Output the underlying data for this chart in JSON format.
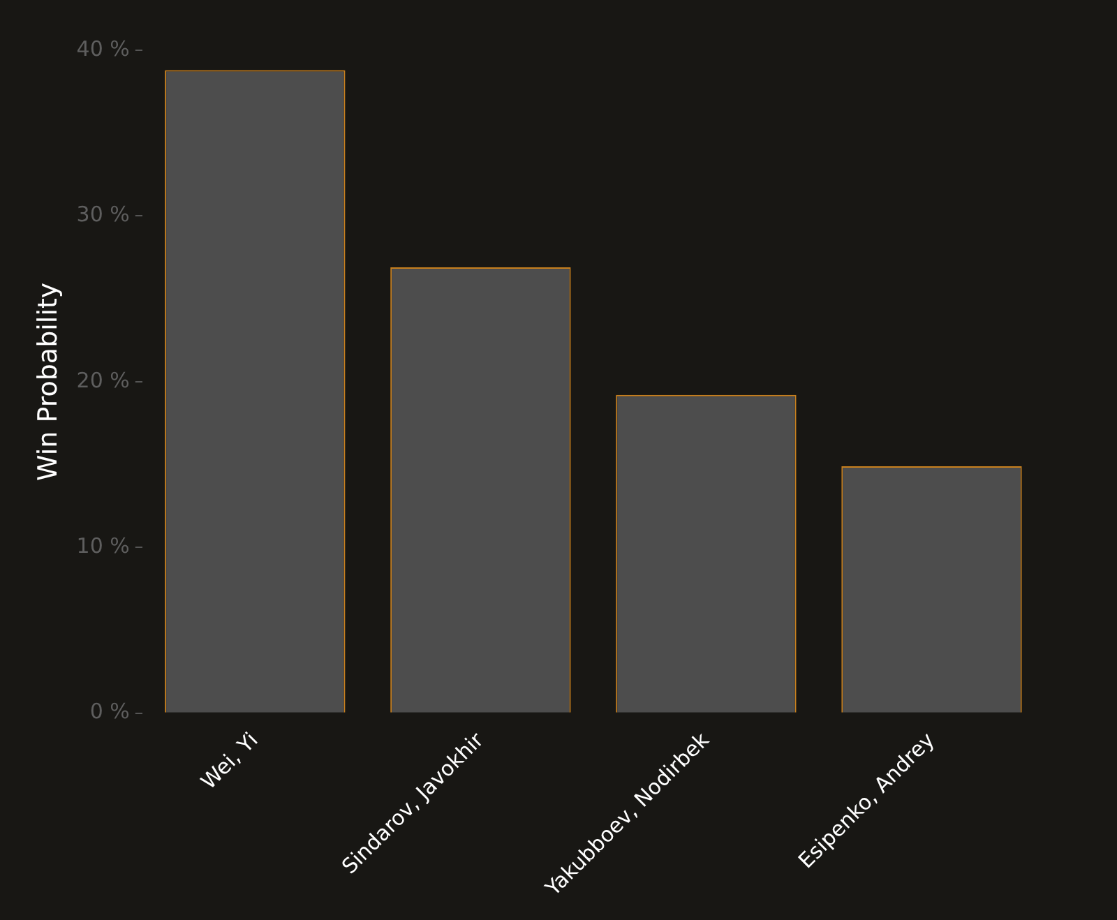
{
  "chart_data": {
    "type": "bar",
    "ylabel": "Win Probability",
    "categories": [
      "Wei, Yi",
      "Sindarov, Javokhir",
      "Yakubboev, Nodirbek",
      "Esipenko, Andrey"
    ],
    "values": [
      38.8,
      26.9,
      19.2,
      14.9
    ],
    "color": "#4d4d4d",
    "ylim": [
      0,
      40
    ],
    "yticks": [
      {
        "value": 0,
        "label": "0 %"
      },
      {
        "value": 10,
        "label": "10 %"
      },
      {
        "value": 20,
        "label": "20 %"
      },
      {
        "value": 30,
        "label": "30 %"
      },
      {
        "value": 40,
        "label": "40 %"
      }
    ],
    "grid": false,
    "legend": false
  }
}
